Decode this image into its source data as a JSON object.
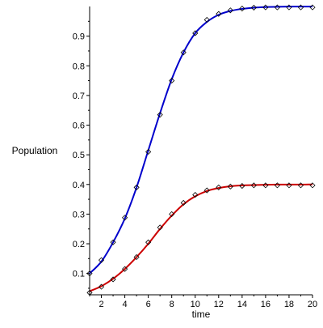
{
  "chart_data": {
    "type": "line",
    "title": "",
    "xlabel": "time",
    "ylabel": "Population",
    "xlim": [
      1,
      20
    ],
    "ylim": [
      0.028,
      1.0
    ],
    "x_ticks": [
      2,
      4,
      6,
      8,
      10,
      12,
      14,
      16,
      18,
      20
    ],
    "y_ticks": [
      0.1,
      0.2,
      0.3,
      0.4,
      0.5,
      0.6,
      0.7,
      0.8,
      0.9
    ],
    "x_tick_labels": [
      "2",
      "4",
      "6",
      "8",
      "10",
      "12",
      "14",
      "16",
      "18",
      "20"
    ],
    "y_tick_labels": [
      "0.1",
      "0.2",
      "0.3",
      "0.4",
      "0.5",
      "0.6",
      "0.7",
      "0.8",
      "0.9"
    ],
    "grid": false,
    "legend": "none",
    "series": [
      {
        "kind": "curve",
        "color": "#0000cc",
        "x": [
          1,
          2,
          3,
          4,
          5,
          6,
          7,
          8,
          9,
          10,
          11,
          12,
          13,
          14,
          15,
          16,
          17,
          18,
          19,
          20
        ],
        "values": [
          0.1,
          0.14,
          0.205,
          0.285,
          0.39,
          0.515,
          0.64,
          0.755,
          0.845,
          0.91,
          0.948,
          0.972,
          0.985,
          0.992,
          0.996,
          0.998,
          0.999,
          0.9995,
          0.9997,
          0.9998
        ]
      },
      {
        "kind": "points",
        "color": "#000000",
        "x": [
          1,
          2,
          3,
          4,
          5,
          6,
          7,
          8,
          9,
          10,
          11,
          12,
          13,
          14,
          15,
          16,
          17,
          18,
          19,
          20
        ],
        "values": [
          0.1,
          0.145,
          0.205,
          0.288,
          0.39,
          0.51,
          0.635,
          0.75,
          0.845,
          0.91,
          0.955,
          0.975,
          0.987,
          0.993,
          0.996,
          0.997,
          0.997,
          0.997,
          0.997,
          0.997
        ]
      },
      {
        "kind": "curve",
        "color": "#cc0000",
        "x": [
          1,
          2,
          3,
          4,
          5,
          6,
          7,
          8,
          9,
          10,
          11,
          12,
          13,
          14,
          15,
          16,
          17,
          18,
          19,
          20
        ],
        "values": [
          0.04,
          0.057,
          0.082,
          0.115,
          0.155,
          0.2,
          0.25,
          0.295,
          0.333,
          0.36,
          0.378,
          0.388,
          0.394,
          0.397,
          0.398,
          0.399,
          0.3995,
          0.3997,
          0.3998,
          0.3999
        ]
      },
      {
        "kind": "points",
        "color": "#000000",
        "x": [
          1,
          2,
          3,
          4,
          5,
          6,
          7,
          8,
          9,
          10,
          11,
          12,
          13,
          14,
          15,
          16,
          17,
          18,
          19,
          20
        ],
        "values": [
          0.035,
          0.055,
          0.08,
          0.115,
          0.155,
          0.205,
          0.255,
          0.3,
          0.338,
          0.365,
          0.38,
          0.39,
          0.393,
          0.395,
          0.397,
          0.397,
          0.397,
          0.397,
          0.397,
          0.397
        ]
      }
    ]
  }
}
